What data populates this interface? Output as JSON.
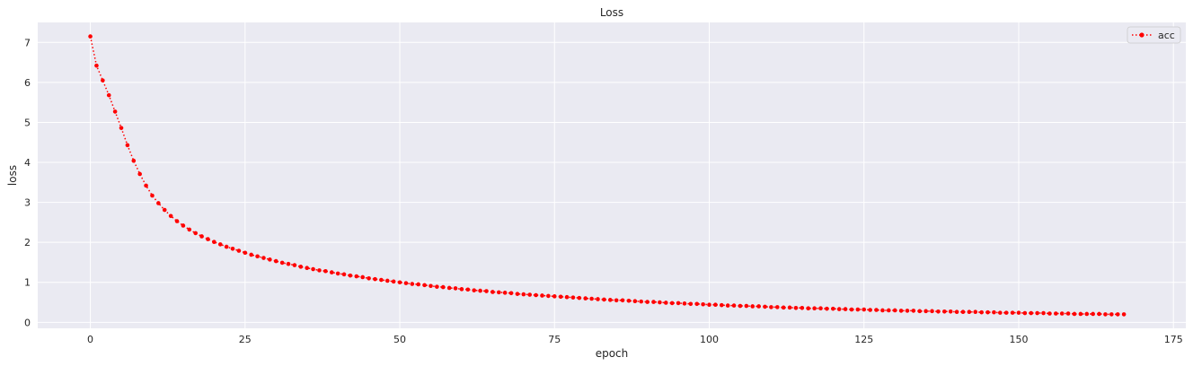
{
  "chart_data": {
    "type": "line",
    "title": "Loss",
    "xlabel": "epoch",
    "ylabel": "loss",
    "xlim": [
      -8.5,
      177
    ],
    "ylim": [
      -0.15,
      7.5
    ],
    "xticks": [
      0,
      25,
      50,
      75,
      100,
      125,
      150,
      175
    ],
    "yticks": [
      0,
      1,
      2,
      3,
      4,
      5,
      6,
      7
    ],
    "grid": true,
    "legend_position": "top-right",
    "style": {
      "background": "#EAEAF2",
      "grid_color": "#FFFFFF",
      "line_color": "#FF0000",
      "line_style": "dotted",
      "marker": "circle"
    },
    "series": [
      {
        "name": "acc",
        "color": "#FF0000",
        "x_start": 0,
        "x_step": 1,
        "values": [
          7.15,
          6.42,
          6.05,
          5.68,
          5.27,
          4.86,
          4.43,
          4.04,
          3.71,
          3.42,
          3.17,
          2.98,
          2.81,
          2.66,
          2.53,
          2.42,
          2.32,
          2.23,
          2.15,
          2.08,
          2.01,
          1.95,
          1.89,
          1.84,
          1.79,
          1.74,
          1.69,
          1.65,
          1.61,
          1.57,
          1.53,
          1.49,
          1.46,
          1.43,
          1.39,
          1.36,
          1.33,
          1.3,
          1.28,
          1.25,
          1.22,
          1.2,
          1.17,
          1.15,
          1.13,
          1.1,
          1.08,
          1.06,
          1.04,
          1.02,
          1.0,
          0.98,
          0.96,
          0.95,
          0.93,
          0.91,
          0.89,
          0.88,
          0.86,
          0.85,
          0.83,
          0.82,
          0.8,
          0.79,
          0.78,
          0.76,
          0.75,
          0.74,
          0.73,
          0.71,
          0.7,
          0.69,
          0.68,
          0.67,
          0.66,
          0.65,
          0.64,
          0.63,
          0.62,
          0.61,
          0.6,
          0.59,
          0.58,
          0.57,
          0.56,
          0.55,
          0.55,
          0.54,
          0.53,
          0.52,
          0.51,
          0.51,
          0.5,
          0.49,
          0.48,
          0.48,
          0.47,
          0.46,
          0.46,
          0.45,
          0.44,
          0.44,
          0.43,
          0.42,
          0.42,
          0.41,
          0.41,
          0.4,
          0.4,
          0.39,
          0.38,
          0.38,
          0.37,
          0.37,
          0.36,
          0.36,
          0.35,
          0.35,
          0.35,
          0.34,
          0.34,
          0.33,
          0.33,
          0.32,
          0.32,
          0.32,
          0.31,
          0.31,
          0.3,
          0.3,
          0.3,
          0.29,
          0.29,
          0.29,
          0.28,
          0.28,
          0.28,
          0.27,
          0.27,
          0.27,
          0.26,
          0.26,
          0.26,
          0.26,
          0.25,
          0.25,
          0.25,
          0.24,
          0.24,
          0.24,
          0.24,
          0.23,
          0.23,
          0.23,
          0.23,
          0.22,
          0.22,
          0.22,
          0.22,
          0.21,
          0.21,
          0.21,
          0.21,
          0.21,
          0.2,
          0.2,
          0.2,
          0.2
        ]
      }
    ]
  }
}
